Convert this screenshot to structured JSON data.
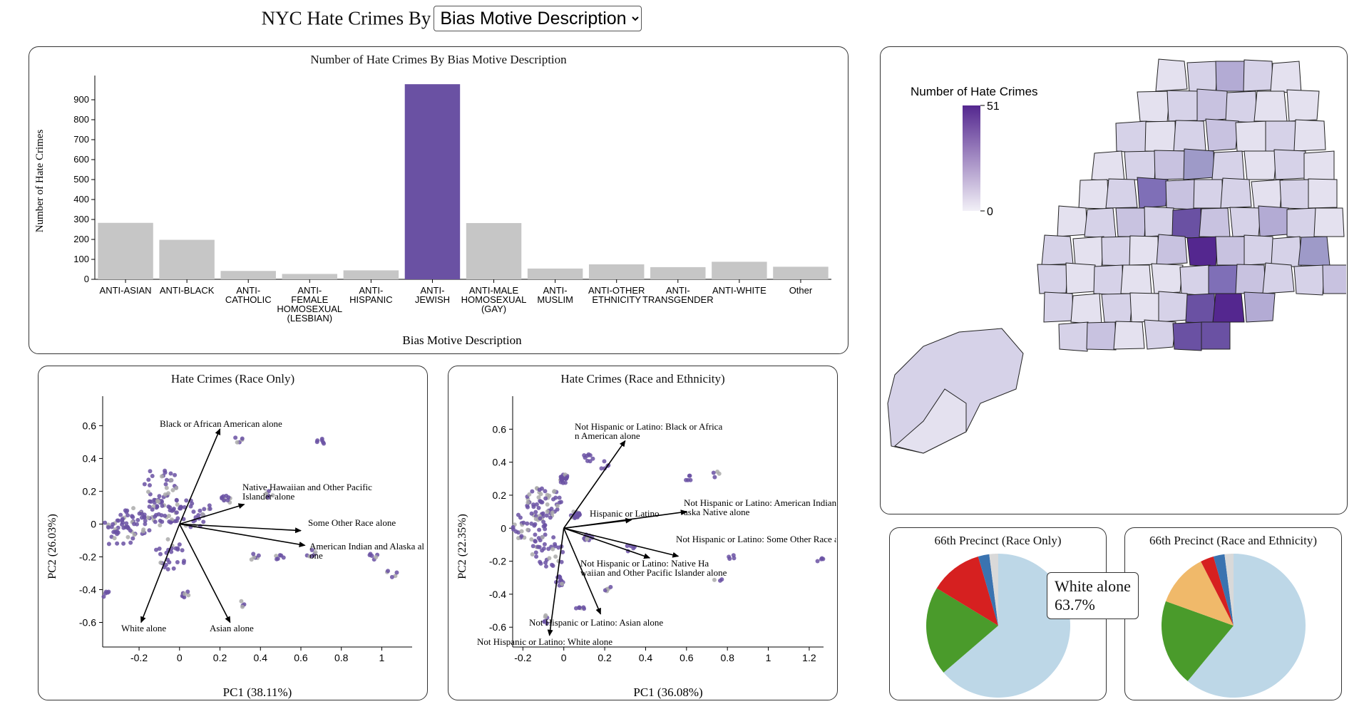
{
  "header": {
    "title": "NYC Hate Crimes By",
    "selected_option": "Bias Motive Description"
  },
  "bar_panel": {
    "title": "Number of Hate Crimes By Bias Motive Description",
    "xlabel": "Bias Motive Description",
    "ylabel": "Number of Hate Crimes"
  },
  "map_panel": {
    "legend_title": "Number of Hate Crimes",
    "legend_max": "51",
    "legend_min": "0"
  },
  "pca_race": {
    "title": "Hate Crimes (Race Only)",
    "xlabel": "PC1 (38.11%)",
    "ylabel": "PC2 (26.03%)"
  },
  "pca_eth": {
    "title": "Hate Crimes (Race and Ethnicity)",
    "xlabel": "PC1 (36.08%)",
    "ylabel": "PC2 (22.35%)"
  },
  "pie_race": {
    "title": "66th Precinct (Race Only)"
  },
  "pie_eth": {
    "title": "66th Precinct (Race and Ethnicity)"
  },
  "tooltip": {
    "label": "White alone",
    "value": "63.7%"
  },
  "colors": {
    "highlight": "#6a51a3",
    "bar_default": "#c6c6c6",
    "arrow": "#000000",
    "point": "#6a51a3",
    "point_gray": "#aaaaaa"
  },
  "chart_data": [
    {
      "type": "bar",
      "title": "Number of Hate Crimes By Bias Motive Description",
      "xlabel": "Bias Motive Description",
      "ylabel": "Number of Hate Crimes",
      "categories": [
        "ANTI-ASIAN",
        "ANTI-BLACK",
        "ANTI-CATHOLIC",
        "ANTI-FEMALE HOMOSEXUAL (LESBIAN)",
        "ANTI-HISPANIC",
        "ANTI-JEWISH",
        "ANTI-MALE HOMOSEXUAL (GAY)",
        "ANTI-MUSLIM",
        "ANTI-OTHER ETHNICITY",
        "ANTI-TRANSGENDER",
        "ANTI-WHITE",
        "Other"
      ],
      "category_label_lines": [
        [
          "ANTI-ASIAN"
        ],
        [
          "ANTI-BLACK"
        ],
        [
          "ANTI-",
          "CATHOLIC"
        ],
        [
          "ANTI-",
          "FEMALE",
          "HOMOSEXUAL",
          "(LESBIAN)"
        ],
        [
          "ANTI-",
          "HISPANIC"
        ],
        [
          "ANTI-",
          "JEWISH"
        ],
        [
          "ANTI-MALE",
          "HOMOSEXUAL",
          "(GAY)"
        ],
        [
          "ANTI-",
          "MUSLIM"
        ],
        [
          "ANTI-OTHER",
          "ETHNICITY"
        ],
        [
          "ANTI-",
          "TRANSGENDER"
        ],
        [
          "ANTI-WHITE"
        ],
        [
          "Other"
        ]
      ],
      "values": [
        283,
        198,
        42,
        27,
        45,
        978,
        282,
        54,
        75,
        61,
        88,
        63
      ],
      "highlight_index": 5,
      "ylim": [
        0,
        1000
      ],
      "yticks": [
        0,
        100,
        200,
        300,
        400,
        500,
        600,
        700,
        800,
        900
      ]
    },
    {
      "type": "scatter",
      "title": "Hate Crimes (Race Only)",
      "xlabel": "PC1 (38.11%)",
      "ylabel": "PC2 (26.03%)",
      "xlim": [
        -0.38,
        1.15
      ],
      "ylim": [
        -0.75,
        0.78
      ],
      "xticks": [
        -0.2,
        0,
        0.2,
        0.4,
        0.6,
        0.8,
        1
      ],
      "xtick_labels": [
        "-0.2",
        "0",
        "0.2",
        "0.4",
        "0.6",
        "0.8",
        "1"
      ],
      "yticks": [
        0.6,
        0.4,
        0.2,
        0,
        -0.2,
        -0.4,
        -0.6
      ],
      "ytick_labels": [
        "0.6",
        "0.4",
        "0.2",
        "0",
        "-0.2",
        "-0.4",
        "-0.6"
      ],
      "loadings": [
        {
          "label": "Black or African American alone",
          "x": 0.2,
          "y": 0.58
        },
        {
          "label": "Native Hawaiian and Other Pacific Islander alone",
          "x": 0.32,
          "y": 0.12
        },
        {
          "label": "Some Other Race alone",
          "x": 0.6,
          "y": -0.04
        },
        {
          "label": "American Indian and Alaska alone",
          "x": 0.62,
          "y": -0.13
        },
        {
          "label": "White alone",
          "x": -0.19,
          "y": -0.6
        },
        {
          "label": "Asian alone",
          "x": 0.25,
          "y": -0.6
        }
      ],
      "point_clusters": [
        {
          "x": -0.08,
          "y": 0.08,
          "n": 60
        },
        {
          "x": -0.22,
          "y": 0.0,
          "n": 40
        },
        {
          "x": -0.3,
          "y": -0.04,
          "n": 30
        },
        {
          "x": -0.1,
          "y": 0.25,
          "n": 25
        },
        {
          "x": -0.05,
          "y": -0.18,
          "n": 25
        },
        {
          "x": 0.08,
          "y": 0.07,
          "n": 25
        },
        {
          "x": -0.37,
          "y": -0.42,
          "n": 8
        },
        {
          "x": 0.03,
          "y": -0.42,
          "n": 8
        },
        {
          "x": 0.23,
          "y": 0.15,
          "n": 10
        },
        {
          "x": 0.44,
          "y": 0.18,
          "n": 6
        },
        {
          "x": 0.7,
          "y": 0.5,
          "n": 6
        },
        {
          "x": 0.37,
          "y": -0.2,
          "n": 6
        },
        {
          "x": 0.5,
          "y": -0.2,
          "n": 6
        },
        {
          "x": 0.65,
          "y": -0.18,
          "n": 6
        },
        {
          "x": 0.96,
          "y": -0.2,
          "n": 6
        },
        {
          "x": 1.05,
          "y": -0.3,
          "n": 5
        },
        {
          "x": 0.3,
          "y": 0.52,
          "n": 5
        },
        {
          "x": 0.3,
          "y": -0.49,
          "n": 4
        }
      ]
    },
    {
      "type": "scatter",
      "title": "Hate Crimes (Race and Ethnicity)",
      "xlabel": "PC1 (36.08%)",
      "ylabel": "PC2 (22.35%)",
      "xlim": [
        -0.25,
        1.27
      ],
      "ylim": [
        -0.72,
        0.8
      ],
      "xticks": [
        -0.2,
        0,
        0.2,
        0.4,
        0.6,
        0.8,
        1,
        1.2
      ],
      "xtick_labels": [
        "-0.2",
        "0",
        "0.2",
        "0.4",
        "0.6",
        "0.8",
        "1",
        "1.2"
      ],
      "yticks": [
        0.6,
        0.4,
        0.2,
        0,
        -0.2,
        -0.4,
        -0.6
      ],
      "ytick_labels": [
        "0.6",
        "0.4",
        "0.2",
        "0",
        "-0.2",
        "-0.4",
        "-0.6"
      ],
      "loadings": [
        {
          "label": "Not Hispanic or Latino: Black or African American alone",
          "x": 0.3,
          "y": 0.53
        },
        {
          "label": "Hispanic or Latino",
          "x": 0.33,
          "y": 0.05
        },
        {
          "label": "Not Hispanic or Latino: American Indian and Alaska Native alone",
          "x": 0.6,
          "y": 0.1
        },
        {
          "label": "Not Hispanic or Latino: Some Other Race alone",
          "x": 0.56,
          "y": -0.17
        },
        {
          "label": "Not Hispanic or Latino: Native Hawaiian and Other Pacific Islander alone",
          "x": 0.42,
          "y": -0.18
        },
        {
          "label": "Not Hispanic or Latino: Asian alone",
          "x": 0.18,
          "y": -0.52
        },
        {
          "label": "Not Hispanic or Latino: White alone",
          "x": -0.07,
          "y": -0.65
        }
      ],
      "point_clusters": [
        {
          "x": -0.1,
          "y": 0.15,
          "n": 60
        },
        {
          "x": -0.17,
          "y": 0.0,
          "n": 40
        },
        {
          "x": -0.07,
          "y": -0.15,
          "n": 30
        },
        {
          "x": 0.0,
          "y": 0.3,
          "n": 20
        },
        {
          "x": 0.06,
          "y": 0.08,
          "n": 20
        },
        {
          "x": -0.02,
          "y": -0.32,
          "n": 12
        },
        {
          "x": 0.12,
          "y": 0.43,
          "n": 8
        },
        {
          "x": 0.12,
          "y": -0.05,
          "n": 10
        },
        {
          "x": -0.08,
          "y": -0.55,
          "n": 6
        },
        {
          "x": 0.08,
          "y": -0.48,
          "n": 6
        },
        {
          "x": 0.22,
          "y": -0.38,
          "n": 5
        },
        {
          "x": 0.2,
          "y": 0.38,
          "n": 5
        },
        {
          "x": 0.33,
          "y": -0.12,
          "n": 5
        },
        {
          "x": 0.62,
          "y": 0.3,
          "n": 5
        },
        {
          "x": 0.75,
          "y": 0.32,
          "n": 4
        },
        {
          "x": 0.82,
          "y": -0.18,
          "n": 4
        },
        {
          "x": 1.25,
          "y": -0.2,
          "n": 4
        },
        {
          "x": 0.75,
          "y": -0.3,
          "n": 3
        }
      ]
    },
    {
      "type": "pie",
      "title": "66th Precinct (Race Only)",
      "slices": [
        {
          "label": "White alone",
          "value": 63.7,
          "color": "#bdd7e7"
        },
        {
          "label": "",
          "value": 20.0,
          "color": "#4a9b2b"
        },
        {
          "label": "",
          "value": 11.8,
          "color": "#d62020"
        },
        {
          "label": "",
          "value": 2.5,
          "color": "#3a73b0"
        },
        {
          "label": "",
          "value": 2.0,
          "color": "#d9d9d9"
        }
      ]
    },
    {
      "type": "pie",
      "title": "66th Precinct (Race and Ethnicity)",
      "slices": [
        {
          "label": "",
          "value": 61.0,
          "color": "#bdd7e7"
        },
        {
          "label": "",
          "value": 19.5,
          "color": "#4a9b2b"
        },
        {
          "label": "",
          "value": 12.0,
          "color": "#f0b96a"
        },
        {
          "label": "",
          "value": 3.0,
          "color": "#d62020"
        },
        {
          "label": "",
          "value": 2.5,
          "color": "#3a73b0"
        },
        {
          "label": "",
          "value": 2.0,
          "color": "#d9d9d9"
        }
      ]
    }
  ]
}
